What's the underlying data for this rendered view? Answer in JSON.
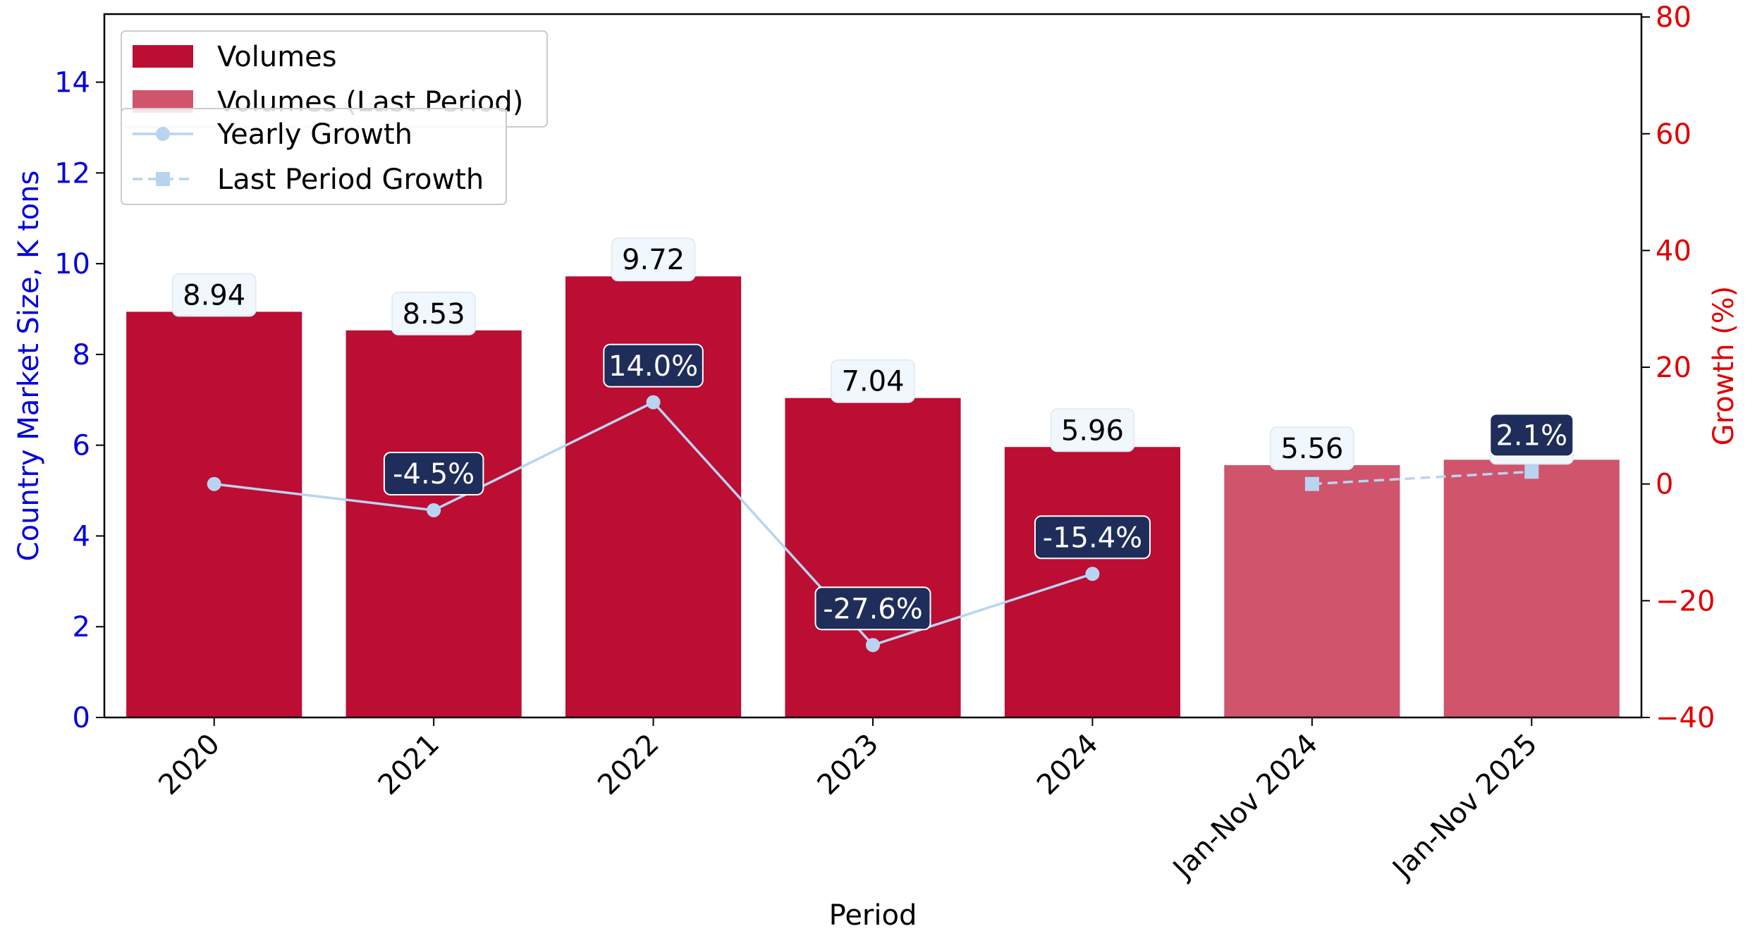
{
  "chart_data": {
    "type": "bar",
    "categories": [
      "2020",
      "2021",
      "2022",
      "2023",
      "2024",
      "Jan-Nov 2024",
      "Jan-Nov 2025"
    ],
    "xlabel": "Period",
    "ylabel": "Country Market Size, K tons",
    "y2label": "Growth (%)",
    "ylim": [
      0,
      15.5
    ],
    "y2lim": [
      -40,
      80.5
    ],
    "yticks": [
      0,
      2,
      4,
      6,
      8,
      10,
      12,
      14
    ],
    "y2ticks": [
      -40,
      -20,
      0,
      20,
      40,
      60,
      80
    ],
    "grid": false,
    "legend_position": "top-left",
    "series": [
      {
        "name": "Volumes",
        "type": "bar",
        "color": "#bc0d33",
        "values": [
          8.94,
          8.53,
          9.72,
          7.04,
          5.96,
          null,
          null
        ],
        "labels": [
          "8.94",
          "8.53",
          "9.72",
          "7.04",
          "5.96",
          null,
          null
        ]
      },
      {
        "name": "Volumes (Last Period)",
        "type": "bar",
        "color": "#d0546c",
        "values": [
          null,
          null,
          null,
          null,
          null,
          5.56,
          5.68
        ],
        "labels": [
          null,
          null,
          null,
          null,
          null,
          "5.56",
          "5.68"
        ]
      },
      {
        "name": "Yearly Growth",
        "type": "line",
        "axis": "right",
        "color": "#b8d4f0",
        "marker": "circle",
        "values": [
          0,
          -4.5,
          14.0,
          -27.6,
          -15.4,
          null,
          null
        ],
        "labels": [
          null,
          "-4.5%",
          "14.0%",
          "-27.6%",
          "-15.4%",
          null,
          null
        ]
      },
      {
        "name": "Last Period Growth",
        "type": "line",
        "axis": "right",
        "style": "dashed",
        "color": "#b8d4f0",
        "marker": "square",
        "values": [
          null,
          null,
          null,
          null,
          null,
          0,
          2.1
        ],
        "labels": [
          null,
          null,
          null,
          null,
          null,
          null,
          "2.1%"
        ]
      }
    ],
    "colors": {
      "left_axis": "#0000dd",
      "right_axis": "#e00000",
      "value_box_fill": "#f0f7fd",
      "growth_box_fill": "#1f2d5a"
    }
  }
}
